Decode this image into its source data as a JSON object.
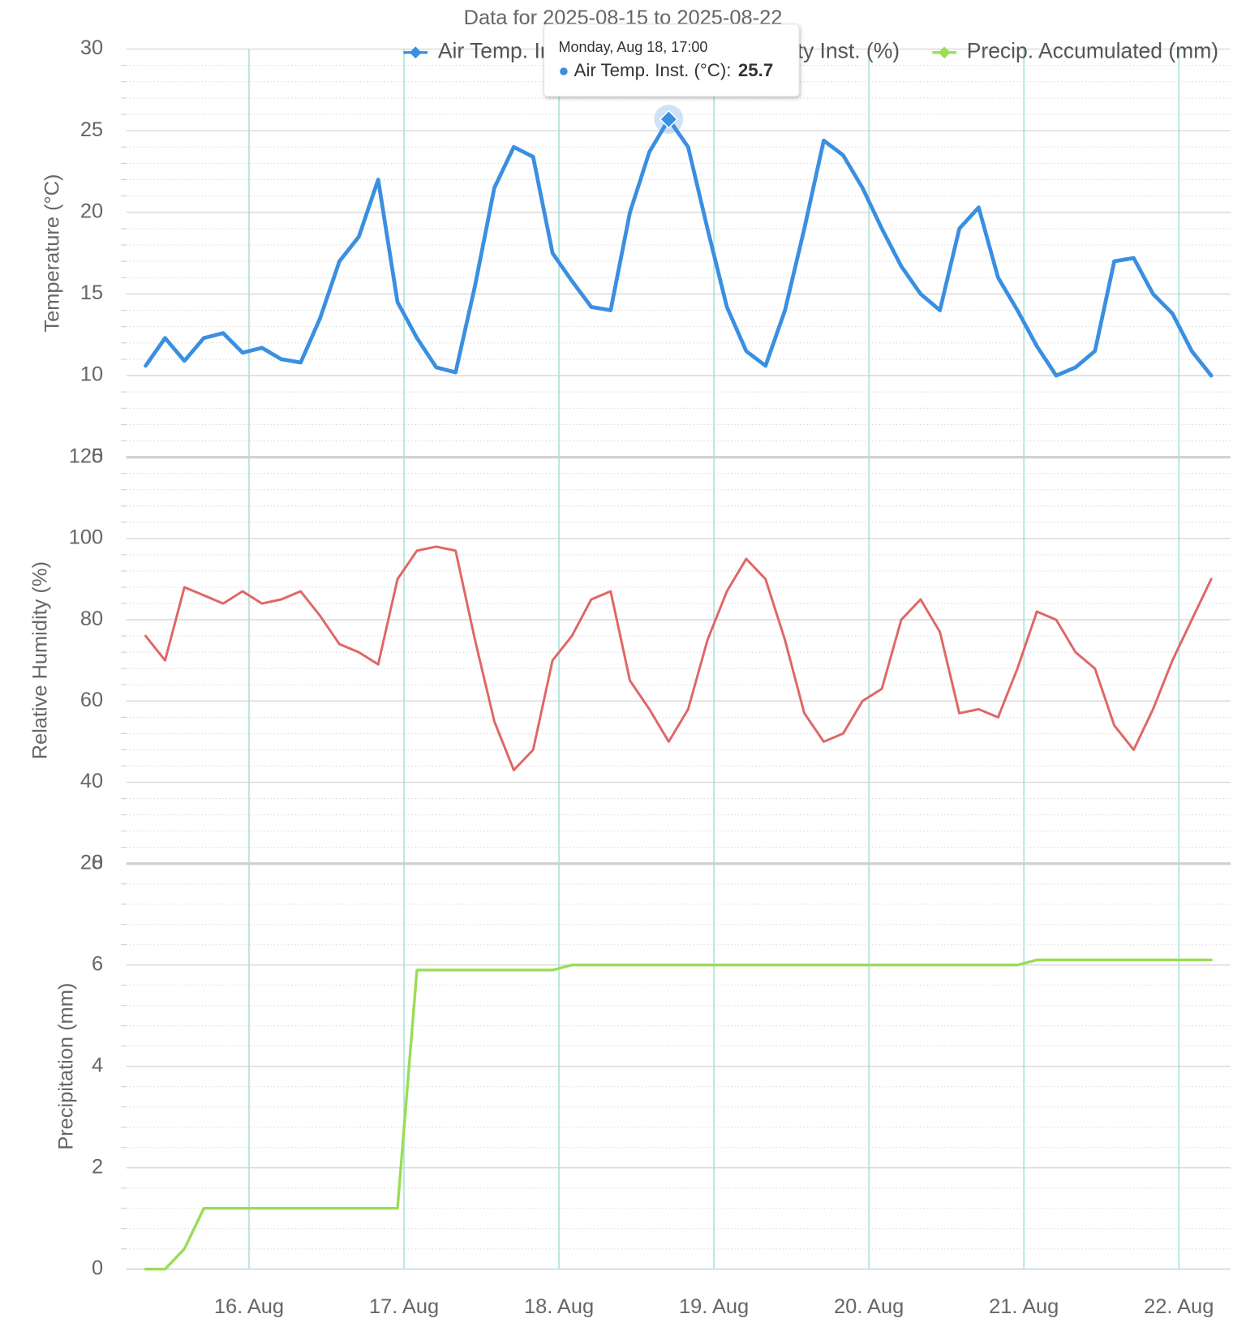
{
  "chart_data": {
    "type": "line",
    "title": "Data for 2025-08-15 to 2025-08-22",
    "x": [
      "2025-08-15 08:00",
      "2025-08-15 11:00",
      "2025-08-15 14:00",
      "2025-08-15 17:00",
      "2025-08-15 20:00",
      "2025-08-15 23:00",
      "2025-08-16 02:00",
      "2025-08-16 05:00",
      "2025-08-16 08:00",
      "2025-08-16 11:00",
      "2025-08-16 14:00",
      "2025-08-16 17:00",
      "2025-08-16 20:00",
      "2025-08-16 23:00",
      "2025-08-17 02:00",
      "2025-08-17 05:00",
      "2025-08-17 08:00",
      "2025-08-17 11:00",
      "2025-08-17 14:00",
      "2025-08-17 17:00",
      "2025-08-17 20:00",
      "2025-08-17 23:00",
      "2025-08-18 02:00",
      "2025-08-18 05:00",
      "2025-08-18 08:00",
      "2025-08-18 11:00",
      "2025-08-18 14:00",
      "2025-08-18 17:00",
      "2025-08-18 20:00",
      "2025-08-18 23:00",
      "2025-08-19 02:00",
      "2025-08-19 05:00",
      "2025-08-19 08:00",
      "2025-08-19 11:00",
      "2025-08-19 14:00",
      "2025-08-19 17:00",
      "2025-08-19 20:00",
      "2025-08-19 23:00",
      "2025-08-20 02:00",
      "2025-08-20 05:00",
      "2025-08-20 08:00",
      "2025-08-20 11:00",
      "2025-08-20 14:00",
      "2025-08-20 17:00",
      "2025-08-20 20:00",
      "2025-08-20 23:00",
      "2025-08-21 02:00",
      "2025-08-21 05:00",
      "2025-08-21 08:00",
      "2025-08-21 11:00",
      "2025-08-21 14:00",
      "2025-08-21 17:00",
      "2025-08-21 20:00",
      "2025-08-21 23:00",
      "2025-08-22 02:00",
      "2025-08-22 05:00"
    ],
    "xlim": [
      "2025-08-15 05:00",
      "2025-08-22 08:00"
    ],
    "xticks": [
      {
        "value": "2025-08-16 00:00",
        "label": "16. Aug"
      },
      {
        "value": "2025-08-17 00:00",
        "label": "17. Aug"
      },
      {
        "value": "2025-08-18 00:00",
        "label": "18. Aug"
      },
      {
        "value": "2025-08-19 00:00",
        "label": "19. Aug"
      },
      {
        "value": "2025-08-20 00:00",
        "label": "20. Aug"
      },
      {
        "value": "2025-08-21 00:00",
        "label": "21. Aug"
      },
      {
        "value": "2025-08-22 00:00",
        "label": "22. Aug"
      }
    ],
    "panels": [
      {
        "ylabel": "Temperature (°C)",
        "ylim": [
          5,
          30
        ],
        "yticks": [
          5,
          10,
          15,
          20,
          25,
          30
        ]
      },
      {
        "ylabel": "Relative Humidity (%)",
        "ylim": [
          20,
          120
        ],
        "yticks": [
          20,
          40,
          60,
          80,
          100,
          120
        ]
      },
      {
        "ylabel": "Precipitation (mm)",
        "ylim": [
          0,
          8
        ],
        "yticks": [
          0,
          2,
          4,
          6,
          8
        ]
      }
    ],
    "series": [
      {
        "name": "Air Temp. Inst. (°C)",
        "color": "#3a8fe0",
        "panel": 0,
        "values": [
          10.6,
          12.3,
          10.9,
          12.3,
          12.6,
          11.4,
          11.7,
          11.0,
          10.8,
          13.5,
          17.0,
          18.5,
          22.0,
          14.5,
          12.3,
          10.5,
          10.2,
          15.5,
          21.5,
          24.0,
          23.4,
          17.5,
          15.8,
          14.2,
          14.0,
          20.0,
          23.7,
          25.7,
          24.0,
          19.0,
          14.2,
          11.5,
          10.6,
          14.0,
          19.0,
          24.4,
          23.5,
          21.5,
          19.0,
          16.7,
          15.0,
          14.0,
          19.0,
          20.3,
          16.0,
          14.0,
          11.8,
          10.0,
          10.5,
          11.5,
          17.0,
          17.2,
          15.0,
          13.8,
          11.5,
          10.0
        ]
      },
      {
        "name": "Rel. Humidity Inst. (%)",
        "color": "#e06666",
        "panel": 1,
        "values": [
          76,
          70,
          88,
          86,
          84,
          87,
          84,
          85,
          87,
          81,
          74,
          72,
          69,
          90,
          97,
          98,
          97,
          75,
          55,
          43,
          48,
          70,
          76,
          85,
          87,
          65,
          58,
          50,
          58,
          75,
          87,
          95,
          90,
          75,
          57,
          50,
          52,
          60,
          63,
          80,
          85,
          77,
          57,
          58,
          56,
          68,
          82,
          80,
          72,
          68,
          54,
          48,
          58,
          70,
          80,
          90
        ]
      },
      {
        "name": "Precip. Accumulated (mm)",
        "color": "#99dd55",
        "panel": 2,
        "values": [
          0,
          0,
          0.4,
          1.2,
          1.2,
          1.2,
          1.2,
          1.2,
          1.2,
          1.2,
          1.2,
          1.2,
          1.2,
          1.2,
          5.9,
          5.9,
          5.9,
          5.9,
          5.9,
          5.9,
          5.9,
          5.9,
          6.0,
          6.0,
          6.0,
          6.0,
          6.0,
          6.0,
          6.0,
          6.0,
          6.0,
          6.0,
          6.0,
          6.0,
          6.0,
          6.0,
          6.0,
          6.0,
          6.0,
          6.0,
          6.0,
          6.0,
          6.0,
          6.0,
          6.0,
          6.0,
          6.1,
          6.1,
          6.1,
          6.1,
          6.1,
          6.1,
          6.1,
          6.1,
          6.1,
          6.1
        ]
      }
    ],
    "grid": true,
    "tooltip": {
      "header": "Monday, Aug 18, 17:00",
      "label": "Air Temp. Inst. (°C):",
      "value": 25.7
    }
  }
}
